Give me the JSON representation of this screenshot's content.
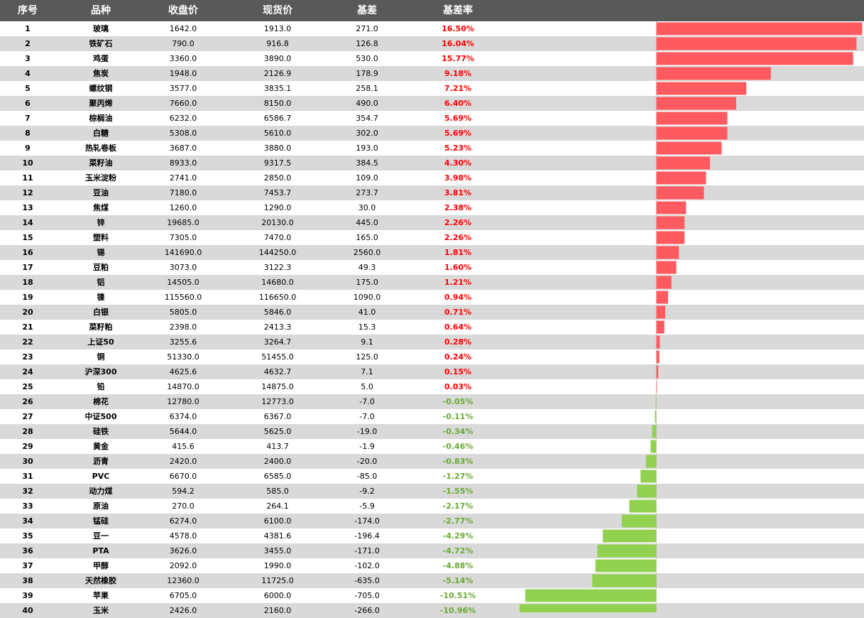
{
  "header": {
    "idx": "序号",
    "name": "品种",
    "close": "收盘价",
    "spot": "现货价",
    "basis": "基差",
    "rate": "基差率"
  },
  "colors": {
    "positive": "#ff5a5f",
    "negative": "#92d050",
    "header_bg": "#595959",
    "stripe": "#d9d9d9"
  },
  "chart_data": {
    "type": "table",
    "bar_column": "基差率",
    "rows": [
      {
        "idx": "1",
        "name": "玻璃",
        "close": "1642.0",
        "spot": "1913.0",
        "basis": "271.0",
        "rate": "16.50%",
        "value": 16.5
      },
      {
        "idx": "2",
        "name": "铁矿石",
        "close": "790.0",
        "spot": "916.8",
        "basis": "126.8",
        "rate": "16.04%",
        "value": 16.04
      },
      {
        "idx": "3",
        "name": "鸡蛋",
        "close": "3360.0",
        "spot": "3890.0",
        "basis": "530.0",
        "rate": "15.77%",
        "value": 15.77
      },
      {
        "idx": "4",
        "name": "焦炭",
        "close": "1948.0",
        "spot": "2126.9",
        "basis": "178.9",
        "rate": "9.18%",
        "value": 9.18
      },
      {
        "idx": "5",
        "name": "螺纹钢",
        "close": "3577.0",
        "spot": "3835.1",
        "basis": "258.1",
        "rate": "7.21%",
        "value": 7.21
      },
      {
        "idx": "6",
        "name": "聚丙烯",
        "close": "7660.0",
        "spot": "8150.0",
        "basis": "490.0",
        "rate": "6.40%",
        "value": 6.4
      },
      {
        "idx": "7",
        "name": "棕榈油",
        "close": "6232.0",
        "spot": "6586.7",
        "basis": "354.7",
        "rate": "5.69%",
        "value": 5.69
      },
      {
        "idx": "8",
        "name": "白糖",
        "close": "5308.0",
        "spot": "5610.0",
        "basis": "302.0",
        "rate": "5.69%",
        "value": 5.69
      },
      {
        "idx": "9",
        "name": "热轧卷板",
        "close": "3687.0",
        "spot": "3880.0",
        "basis": "193.0",
        "rate": "5.23%",
        "value": 5.23
      },
      {
        "idx": "10",
        "name": "菜籽油",
        "close": "8933.0",
        "spot": "9317.5",
        "basis": "384.5",
        "rate": "4.30%",
        "value": 4.3
      },
      {
        "idx": "11",
        "name": "玉米淀粉",
        "close": "2741.0",
        "spot": "2850.0",
        "basis": "109.0",
        "rate": "3.98%",
        "value": 3.98
      },
      {
        "idx": "12",
        "name": "豆油",
        "close": "7180.0",
        "spot": "7453.7",
        "basis": "273.7",
        "rate": "3.81%",
        "value": 3.81
      },
      {
        "idx": "13",
        "name": "焦煤",
        "close": "1260.0",
        "spot": "1290.0",
        "basis": "30.0",
        "rate": "2.38%",
        "value": 2.38
      },
      {
        "idx": "14",
        "name": "锌",
        "close": "19685.0",
        "spot": "20130.0",
        "basis": "445.0",
        "rate": "2.26%",
        "value": 2.26
      },
      {
        "idx": "15",
        "name": "塑料",
        "close": "7305.0",
        "spot": "7470.0",
        "basis": "165.0",
        "rate": "2.26%",
        "value": 2.26
      },
      {
        "idx": "16",
        "name": "锡",
        "close": "141690.0",
        "spot": "144250.0",
        "basis": "2560.0",
        "rate": "1.81%",
        "value": 1.81
      },
      {
        "idx": "17",
        "name": "豆粕",
        "close": "3073.0",
        "spot": "3122.3",
        "basis": "49.3",
        "rate": "1.60%",
        "value": 1.6
      },
      {
        "idx": "18",
        "name": "铝",
        "close": "14505.0",
        "spot": "14680.0",
        "basis": "175.0",
        "rate": "1.21%",
        "value": 1.21
      },
      {
        "idx": "19",
        "name": "镍",
        "close": "115560.0",
        "spot": "116650.0",
        "basis": "1090.0",
        "rate": "0.94%",
        "value": 0.94
      },
      {
        "idx": "20",
        "name": "白银",
        "close": "5805.0",
        "spot": "5846.0",
        "basis": "41.0",
        "rate": "0.71%",
        "value": 0.71
      },
      {
        "idx": "21",
        "name": "菜籽粕",
        "close": "2398.0",
        "spot": "2413.3",
        "basis": "15.3",
        "rate": "0.64%",
        "value": 0.64
      },
      {
        "idx": "22",
        "name": "上证50",
        "close": "3255.6",
        "spot": "3264.7",
        "basis": "9.1",
        "rate": "0.28%",
        "value": 0.28
      },
      {
        "idx": "23",
        "name": "铜",
        "close": "51330.0",
        "spot": "51455.0",
        "basis": "125.0",
        "rate": "0.24%",
        "value": 0.24
      },
      {
        "idx": "24",
        "name": "沪深300",
        "close": "4625.6",
        "spot": "4632.7",
        "basis": "7.1",
        "rate": "0.15%",
        "value": 0.15
      },
      {
        "idx": "25",
        "name": "铅",
        "close": "14870.0",
        "spot": "14875.0",
        "basis": "5.0",
        "rate": "0.03%",
        "value": 0.03
      },
      {
        "idx": "26",
        "name": "棉花",
        "close": "12780.0",
        "spot": "12773.0",
        "basis": "-7.0",
        "rate": "-0.05%",
        "value": -0.05
      },
      {
        "idx": "27",
        "name": "中证500",
        "close": "6374.0",
        "spot": "6367.0",
        "basis": "-7.0",
        "rate": "-0.11%",
        "value": -0.11
      },
      {
        "idx": "28",
        "name": "硅铁",
        "close": "5644.0",
        "spot": "5625.0",
        "basis": "-19.0",
        "rate": "-0.34%",
        "value": -0.34
      },
      {
        "idx": "29",
        "name": "黄金",
        "close": "415.6",
        "spot": "413.7",
        "basis": "-1.9",
        "rate": "-0.46%",
        "value": -0.46
      },
      {
        "idx": "30",
        "name": "沥青",
        "close": "2420.0",
        "spot": "2400.0",
        "basis": "-20.0",
        "rate": "-0.83%",
        "value": -0.83
      },
      {
        "idx": "31",
        "name": "PVC",
        "close": "6670.0",
        "spot": "6585.0",
        "basis": "-85.0",
        "rate": "-1.27%",
        "value": -1.27
      },
      {
        "idx": "32",
        "name": "动力煤",
        "close": "594.2",
        "spot": "585.0",
        "basis": "-9.2",
        "rate": "-1.55%",
        "value": -1.55
      },
      {
        "idx": "33",
        "name": "原油",
        "close": "270.0",
        "spot": "264.1",
        "basis": "-5.9",
        "rate": "-2.17%",
        "value": -2.17
      },
      {
        "idx": "34",
        "name": "锰硅",
        "close": "6274.0",
        "spot": "6100.0",
        "basis": "-174.0",
        "rate": "-2.77%",
        "value": -2.77
      },
      {
        "idx": "35",
        "name": "豆一",
        "close": "4578.0",
        "spot": "4381.6",
        "basis": "-196.4",
        "rate": "-4.29%",
        "value": -4.29
      },
      {
        "idx": "36",
        "name": "PTA",
        "close": "3626.0",
        "spot": "3455.0",
        "basis": "-171.0",
        "rate": "-4.72%",
        "value": -4.72
      },
      {
        "idx": "37",
        "name": "甲醇",
        "close": "2092.0",
        "spot": "1990.0",
        "basis": "-102.0",
        "rate": "-4.88%",
        "value": -4.88
      },
      {
        "idx": "38",
        "name": "天然橡胶",
        "close": "12360.0",
        "spot": "11725.0",
        "basis": "-635.0",
        "rate": "-5.14%",
        "value": -5.14
      },
      {
        "idx": "39",
        "name": "苹果",
        "close": "6705.0",
        "spot": "6000.0",
        "basis": "-705.0",
        "rate": "-10.51%",
        "value": -10.51
      },
      {
        "idx": "40",
        "name": "玉米",
        "close": "2426.0",
        "spot": "2160.0",
        "basis": "-266.0",
        "rate": "-10.96%",
        "value": -10.96
      }
    ]
  }
}
